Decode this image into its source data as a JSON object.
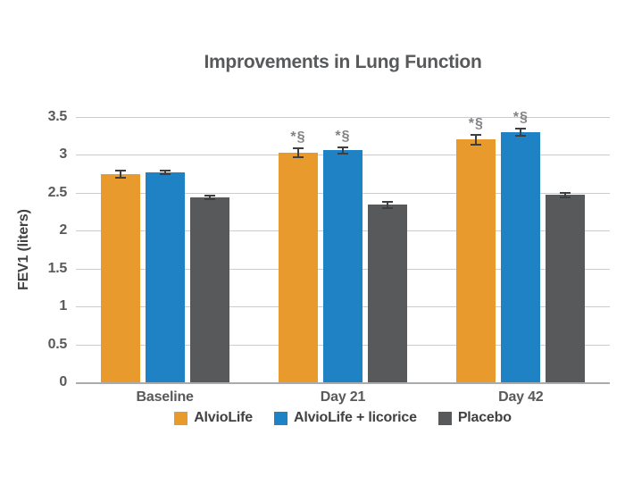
{
  "chart_data": {
    "type": "bar",
    "title": "Improvements in Lung Function",
    "ylabel": "FEV1 (liters)",
    "xlabel": "",
    "categories": [
      "Baseline",
      "Day 21",
      "Day 42"
    ],
    "series": [
      {
        "name": "AlvioLife",
        "color": "#E89A2D",
        "values": [
          2.75,
          3.03,
          3.2
        ],
        "errors": [
          0.06,
          0.07,
          0.08
        ],
        "annotations": [
          "",
          "*§",
          "*§"
        ]
      },
      {
        "name": "AlvioLife + licorice",
        "color": "#1E82C5",
        "values": [
          2.77,
          3.06,
          3.3
        ],
        "errors": [
          0.04,
          0.05,
          0.06
        ],
        "annotations": [
          "",
          "*§",
          "*§"
        ]
      },
      {
        "name": "Placebo",
        "color": "#58595B",
        "values": [
          2.44,
          2.34,
          2.47
        ],
        "errors": [
          0.04,
          0.05,
          0.04
        ],
        "annotations": [
          "",
          "",
          ""
        ]
      }
    ],
    "ylim": [
      0,
      3.5
    ],
    "ytick_step": 0.5,
    "grid": true,
    "legend_position": "bottom"
  }
}
